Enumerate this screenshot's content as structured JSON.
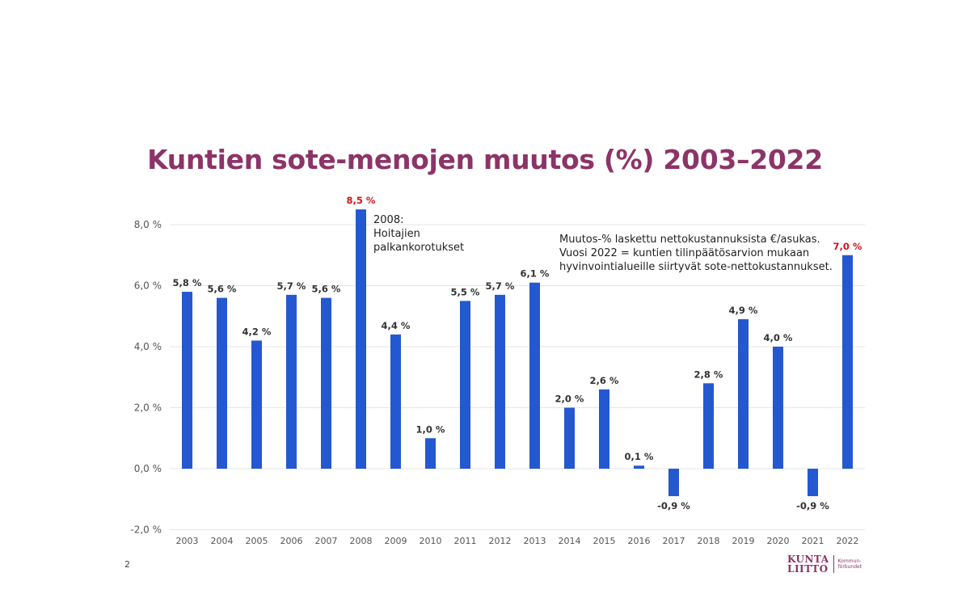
{
  "page": {
    "title": "Kuntien sote-menojen muutos (%) 2003–2022",
    "page_number": "2"
  },
  "annotations": {
    "event_2008": [
      "2008:",
      "Hoitajien",
      "palkankorotukset"
    ],
    "method_note": [
      "Muutos-% laskettu nettokustannuksista €/asukas.",
      "Vuosi 2022 = kuntien tilinpäätösarvion mukaan",
      "hyvinvointialueille siirtyvät sote-nettokustannukset."
    ]
  },
  "logo": {
    "word_top": "KUNTA",
    "word_bottom": "LIITTO",
    "sub_top": "Kommun-",
    "sub_bottom": "förbundet"
  },
  "colors": {
    "bar": "#2458d0",
    "highlight_label": "#d0141c",
    "title": "#8c3468",
    "grid": "#e6e6e6"
  },
  "chart_data": {
    "type": "bar",
    "categories": [
      "2003",
      "2004",
      "2005",
      "2006",
      "2007",
      "2008",
      "2009",
      "2010",
      "2011",
      "2012",
      "2013",
      "2014",
      "2015",
      "2016",
      "2017",
      "2018",
      "2019",
      "2020",
      "2021",
      "2022"
    ],
    "values": [
      5.8,
      5.6,
      4.2,
      5.7,
      5.6,
      8.5,
      4.4,
      1.0,
      5.5,
      5.7,
      6.1,
      2.0,
      2.6,
      0.1,
      -0.9,
      2.8,
      4.9,
      4.0,
      -0.9,
      7.0
    ],
    "data_labels": [
      "5,8 %",
      "5,6 %",
      "4,2 %",
      "5,7 %",
      "5,6 %",
      "8,5 %",
      "4,4 %",
      "1,0 %",
      "5,5 %",
      "5,7 %",
      "6,1 %",
      "2,0 %",
      "2,6 %",
      "0,1 %",
      "-0,9 %",
      "2,8 %",
      "4,9 %",
      "4,0 %",
      "-0,9 %",
      "7,0 %"
    ],
    "highlighted": [
      "2008",
      "2022"
    ],
    "y_ticks": [
      -2,
      0,
      2,
      4,
      6,
      8
    ],
    "y_tick_labels": [
      "-2,0 %",
      "0,0 %",
      "2,0 %",
      "4,0 %",
      "6,0 %",
      "8,0 %"
    ],
    "ylim": [
      -2,
      8.5
    ],
    "grid": true,
    "legend": "none"
  }
}
